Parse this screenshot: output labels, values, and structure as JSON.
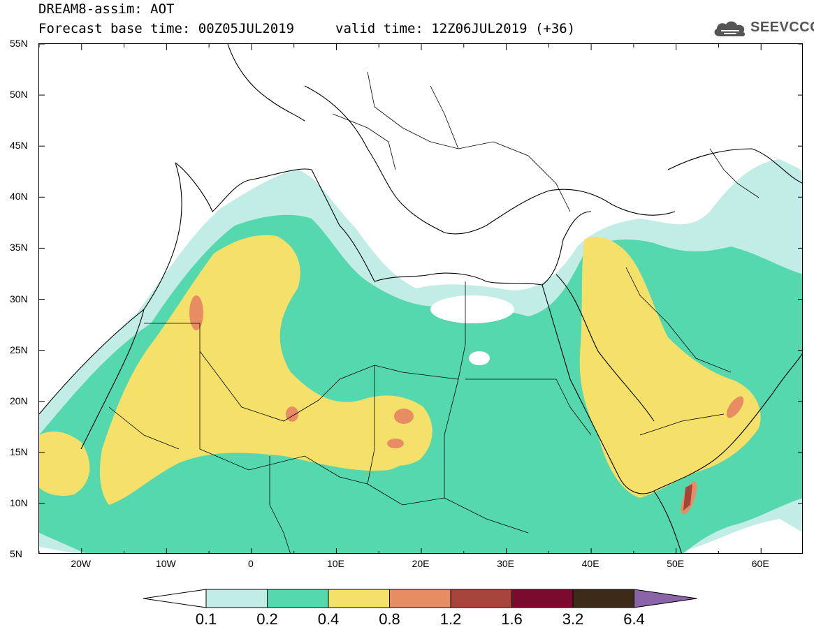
{
  "header": {
    "title_line1": "DREAM8-assim: AOT",
    "title_line2": "Forecast base time: 00Z05JUL2019",
    "valid_time": "valid time: 12Z06JUL2019 (+36)"
  },
  "logo": {
    "text": "SEEVCCC",
    "icon": "cloud-icon"
  },
  "map": {
    "lat_labels": [
      "55N",
      "50N",
      "45N",
      "40N",
      "35N",
      "30N",
      "25N",
      "20N",
      "15N",
      "10N",
      "5N"
    ],
    "lon_labels": [
      "20W",
      "10W",
      "0",
      "10E",
      "20E",
      "30E",
      "40E",
      "50E",
      "60E"
    ],
    "lat_range": [
      5,
      55
    ],
    "lon_range": [
      -25,
      65
    ],
    "variable": "AOT"
  },
  "colorbar": {
    "labels": [
      "0.1",
      "0.2",
      "0.4",
      "0.8",
      "1.2",
      "1.6",
      "3.2",
      "6.4"
    ],
    "colors": [
      "#ffffff",
      "#c2ede6",
      "#55d8ad",
      "#f5e06a",
      "#e88c64",
      "#a6433a",
      "#7a0a2e",
      "#3e2a18",
      "#8a64a6"
    ]
  }
}
